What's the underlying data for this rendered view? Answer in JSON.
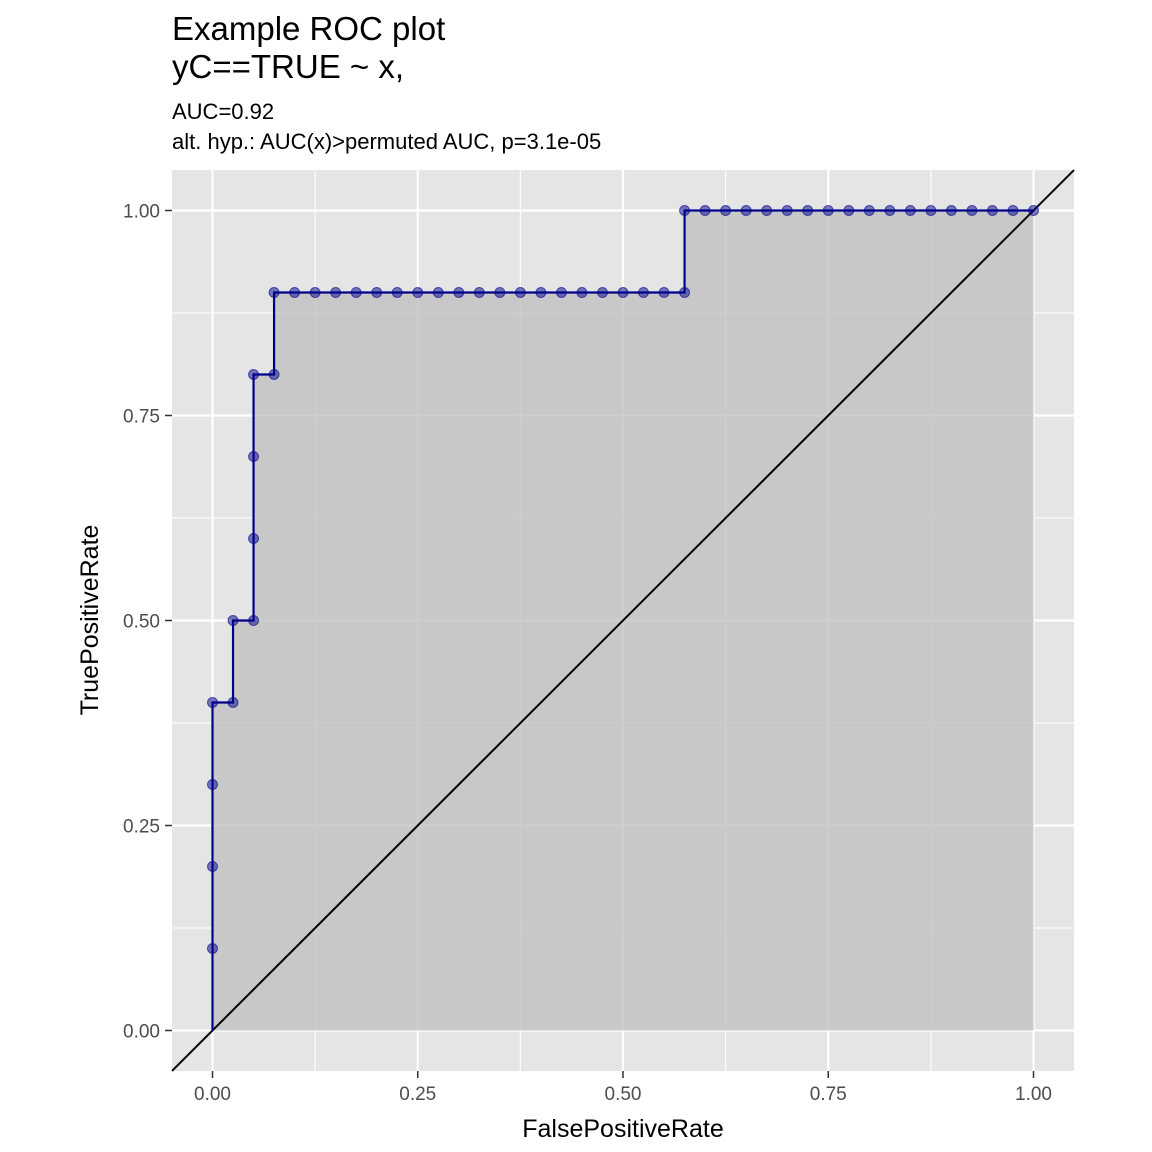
{
  "chart_data": {
    "type": "line",
    "title_lines": [
      "Example ROC plot",
      "yC==TRUE ~ x,"
    ],
    "subtitle_lines": [
      "AUC=0.92",
      "alt. hyp.: AUC(x)>permuted AUC, p=3.1e-05"
    ],
    "xlabel": "FalsePositiveRate",
    "ylabel": "TruePositiveRate",
    "xlim": [
      0,
      1
    ],
    "ylim": [
      0,
      1
    ],
    "x_ticks": [
      "0.00",
      "0.25",
      "0.50",
      "0.75",
      "1.00"
    ],
    "y_ticks": [
      "0.00",
      "0.25",
      "0.50",
      "0.75",
      "1.00"
    ],
    "grid": true,
    "legend": "none",
    "diagonal_reference_line": true,
    "area_under_curve_shaded": true,
    "colors": {
      "panel_background": "#e5e5e5",
      "grid": "#ffffff",
      "area_fill": "#bebebe",
      "curve": "#00008b",
      "diagonal": "#000000"
    },
    "series": [
      {
        "x": [
          0,
          0,
          0,
          0,
          0,
          0.025,
          0.025,
          0.05,
          0.05,
          0.05,
          0.05,
          0.05,
          0.075,
          0.075,
          0.1,
          0.125,
          0.15,
          0.175,
          0.2,
          0.225,
          0.25,
          0.275,
          0.3,
          0.325,
          0.35,
          0.375,
          0.4,
          0.425,
          0.45,
          0.475,
          0.5,
          0.525,
          0.55,
          0.575,
          0.575,
          0.6,
          0.625,
          0.65,
          0.675,
          0.7,
          0.725,
          0.75,
          0.775,
          0.8,
          0.825,
          0.85,
          0.875,
          0.9,
          0.925,
          0.95,
          0.975,
          1.0
        ],
        "y": [
          0,
          0.1,
          0.2,
          0.3,
          0.4,
          0.4,
          0.5,
          0.5,
          0.6,
          0.7,
          0.8,
          0.8,
          0.8,
          0.9,
          0.9,
          0.9,
          0.9,
          0.9,
          0.9,
          0.9,
          0.9,
          0.9,
          0.9,
          0.9,
          0.9,
          0.9,
          0.9,
          0.9,
          0.9,
          0.9,
          0.9,
          0.9,
          0.9,
          0.9,
          1.0,
          1.0,
          1.0,
          1.0,
          1.0,
          1.0,
          1.0,
          1.0,
          1.0,
          1.0,
          1.0,
          1.0,
          1.0,
          1.0,
          1.0,
          1.0,
          1.0,
          1.0
        ],
        "points": [
          [
            0,
            0.1
          ],
          [
            0,
            0.2
          ],
          [
            0,
            0.3
          ],
          [
            0,
            0.4
          ],
          [
            0.025,
            0.4
          ],
          [
            0.025,
            0.5
          ],
          [
            0.05,
            0.5
          ],
          [
            0.05,
            0.6
          ],
          [
            0.05,
            0.7
          ],
          [
            0.05,
            0.8
          ],
          [
            0.075,
            0.8
          ],
          [
            0.075,
            0.9
          ],
          [
            0.1,
            0.9
          ],
          [
            0.125,
            0.9
          ],
          [
            0.15,
            0.9
          ],
          [
            0.175,
            0.9
          ],
          [
            0.2,
            0.9
          ],
          [
            0.225,
            0.9
          ],
          [
            0.25,
            0.9
          ],
          [
            0.275,
            0.9
          ],
          [
            0.3,
            0.9
          ],
          [
            0.325,
            0.9
          ],
          [
            0.35,
            0.9
          ],
          [
            0.375,
            0.9
          ],
          [
            0.4,
            0.9
          ],
          [
            0.425,
            0.9
          ],
          [
            0.45,
            0.9
          ],
          [
            0.475,
            0.9
          ],
          [
            0.5,
            0.9
          ],
          [
            0.525,
            0.9
          ],
          [
            0.55,
            0.9
          ],
          [
            0.575,
            0.9
          ],
          [
            0.575,
            1.0
          ],
          [
            0.6,
            1.0
          ],
          [
            0.625,
            1.0
          ],
          [
            0.65,
            1.0
          ],
          [
            0.675,
            1.0
          ],
          [
            0.7,
            1.0
          ],
          [
            0.725,
            1.0
          ],
          [
            0.75,
            1.0
          ],
          [
            0.775,
            1.0
          ],
          [
            0.8,
            1.0
          ],
          [
            0.825,
            1.0
          ],
          [
            0.85,
            1.0
          ],
          [
            0.875,
            1.0
          ],
          [
            0.9,
            1.0
          ],
          [
            0.925,
            1.0
          ],
          [
            0.95,
            1.0
          ],
          [
            0.975,
            1.0
          ],
          [
            1.0,
            1.0
          ]
        ]
      }
    ]
  }
}
